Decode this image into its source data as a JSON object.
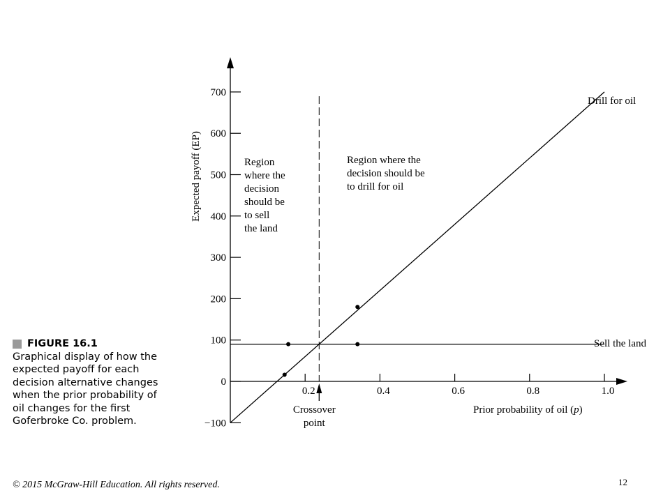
{
  "caption": {
    "title": "FIGURE 16.1",
    "lines": [
      "Graphical display of how the",
      "expected payoff for each",
      "decision alternative changes",
      "when the prior probability of",
      "oil changes for the first",
      "Goferbroke Co. problem."
    ]
  },
  "footer": {
    "copyright": "© 2015 McGraw-Hill Education. All rights reserved.",
    "page_number": "12"
  },
  "chart_data": {
    "type": "line",
    "xlabel": "Prior probability of oil (p)",
    "ylabel": "Expected payoff (EP)",
    "xlim": [
      0,
      1.05
    ],
    "ylim": [
      -100,
      780
    ],
    "x_ticks": [
      0.2,
      0.4,
      0.6,
      0.8,
      1.0
    ],
    "x_tick_labels": [
      "0.2",
      "0.4",
      "0.6",
      "0.8",
      "1.0"
    ],
    "y_ticks": [
      -100,
      0,
      100,
      200,
      300,
      400,
      500,
      600,
      700
    ],
    "y_tick_labels": [
      "−100",
      "0",
      "100",
      "200",
      "300",
      "400",
      "500",
      "600",
      "700"
    ],
    "series": [
      {
        "name": "Drill for oil",
        "x": [
          0,
          1.0
        ],
        "y": [
          -100,
          700
        ]
      },
      {
        "name": "Sell the land",
        "x": [
          0,
          1.0
        ],
        "y": [
          90,
          90
        ]
      }
    ],
    "points": [
      {
        "x": 0.145,
        "y": 16
      },
      {
        "x": 0.155,
        "y": 90
      },
      {
        "x": 0.34,
        "y": 90
      },
      {
        "x": 0.34,
        "y": 180
      }
    ],
    "crossover": {
      "x": 0.2375,
      "label_lines": [
        "Crossover",
        "point"
      ]
    },
    "regions": {
      "left_lines": [
        "Region",
        "where the",
        "decision",
        "should be",
        "to sell",
        "the land"
      ],
      "right_lines": [
        "Region where the",
        "decision should be",
        "to drill for oil"
      ]
    },
    "grid": false
  }
}
